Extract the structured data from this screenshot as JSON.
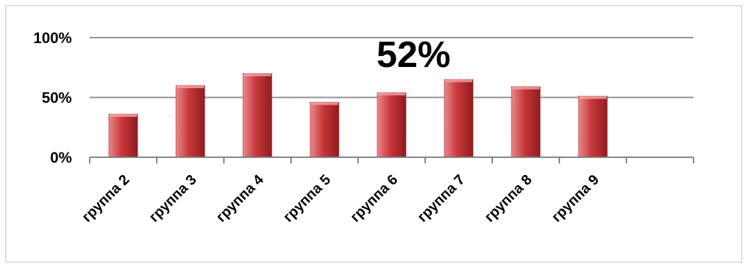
{
  "chart_data": {
    "type": "bar",
    "categories": [
      "группа 2",
      "группа 3",
      "группа 4",
      "группа 5",
      "группа 6",
      "группа 7",
      "группа 8",
      "группа 9",
      ""
    ],
    "values": [
      36,
      60,
      70,
      46,
      54,
      65,
      59,
      51,
      null
    ],
    "y_ticks": [
      0,
      50,
      100
    ],
    "y_tick_labels": [
      "0%",
      "50%",
      "100%"
    ],
    "ylim": [
      0,
      100
    ],
    "annotation": "52%",
    "grid": true,
    "legend": "none",
    "colors": {
      "bar_light": "#e8898a",
      "bar_mid": "#c8373a",
      "bar_dark": "#8e1c1f",
      "gridline": "#8c8c8c",
      "axis": "#7f7f7f"
    }
  }
}
